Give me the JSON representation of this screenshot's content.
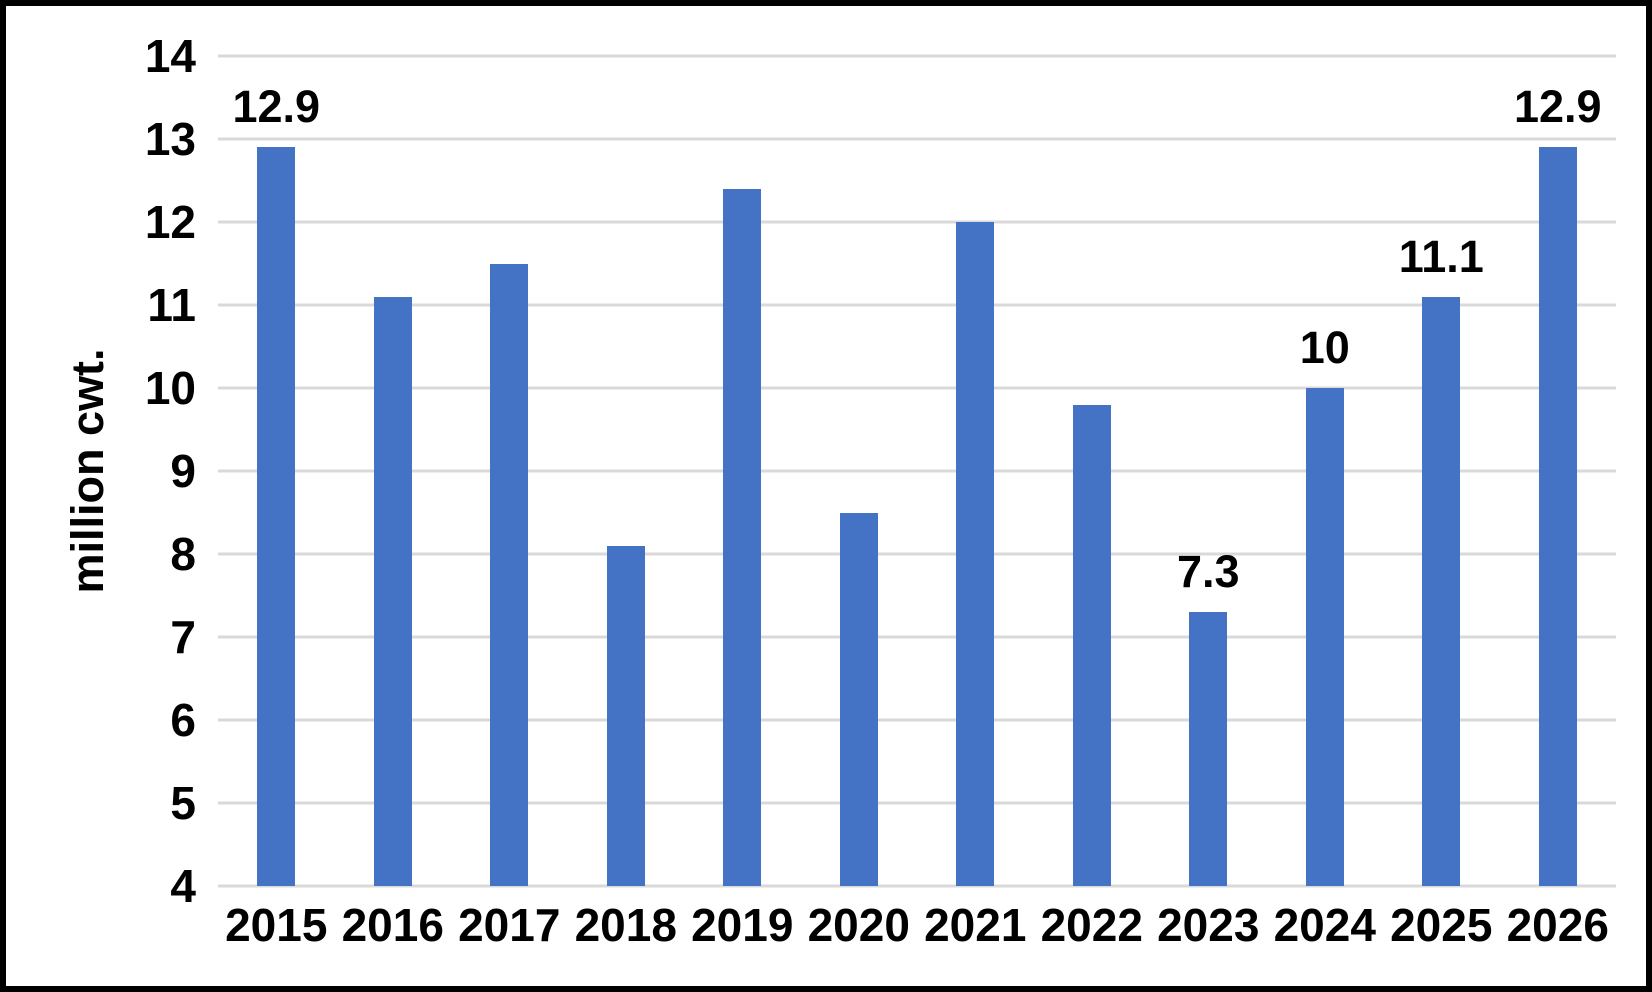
{
  "chart_data": {
    "type": "bar",
    "categories": [
      "2015",
      "2016",
      "2017",
      "2018",
      "2019",
      "2020",
      "2021",
      "2022",
      "2023",
      "2024",
      "2025",
      "2026"
    ],
    "values": [
      12.9,
      11.1,
      11.5,
      8.1,
      12.4,
      8.5,
      12.0,
      9.8,
      7.3,
      10,
      11.1,
      12.9
    ],
    "data_labels": {
      "0": "12.9",
      "8": "7.3",
      "9": "10",
      "10": "11.1",
      "11": "12.9"
    },
    "title": "",
    "xlabel": "",
    "ylabel": "million cwt.",
    "ylim": [
      4,
      14
    ],
    "yticks": [
      4,
      5,
      6,
      7,
      8,
      9,
      10,
      11,
      12,
      13,
      14
    ],
    "grid": true,
    "legend": "none",
    "colors": {
      "bar": "#4472C4",
      "gridline": "#D9D9D9",
      "text": "#000000",
      "background": "#FFFFFF",
      "frame_border": "#000000"
    }
  }
}
